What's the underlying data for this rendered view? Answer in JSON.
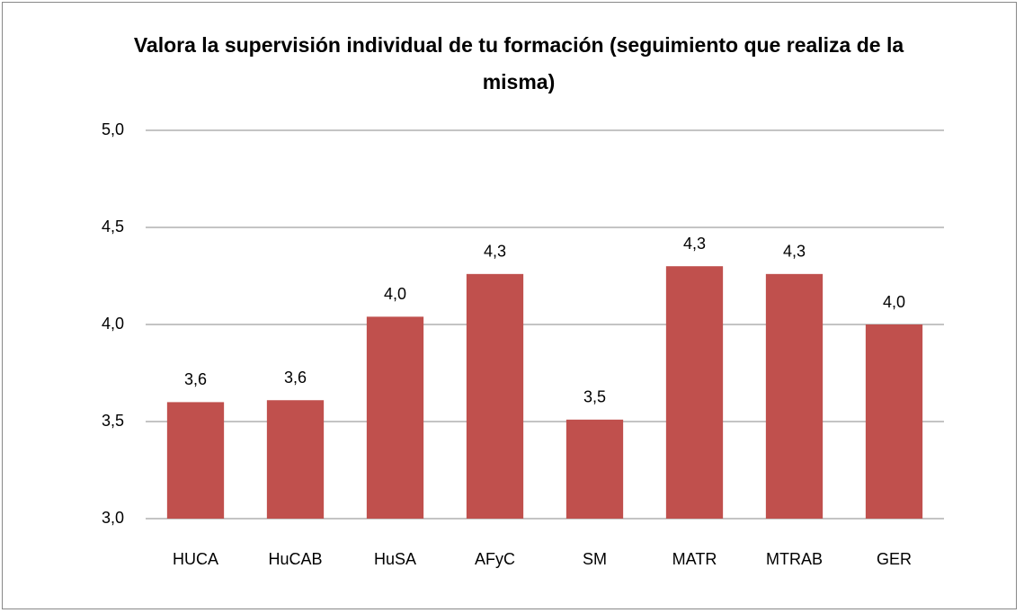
{
  "chart_data": {
    "type": "bar",
    "title": "Valora la supervisión individual de tu formación (seguimiento que realiza de la misma)",
    "categories": [
      "HUCA",
      "HuCAB",
      "HuSA",
      "AFyC",
      "SM",
      "MATR",
      "MTRAB",
      "GER"
    ],
    "values": [
      3.6,
      3.61,
      4.04,
      4.26,
      3.51,
      4.3,
      4.26,
      4.0
    ],
    "value_labels": [
      "3,6",
      "3,6",
      "4,0",
      "4,3",
      "3,5",
      "4,3",
      "4,3",
      "4,0"
    ],
    "color": "#c0504d",
    "ylim": [
      3.0,
      5.0
    ],
    "yticks": [
      {
        "value": 3.0,
        "label": "3,0"
      },
      {
        "value": 3.5,
        "label": "3,5"
      },
      {
        "value": 4.0,
        "label": "4,0"
      },
      {
        "value": 4.5,
        "label": "4,5"
      },
      {
        "value": 5.0,
        "label": "5,0"
      }
    ],
    "grid": true
  }
}
